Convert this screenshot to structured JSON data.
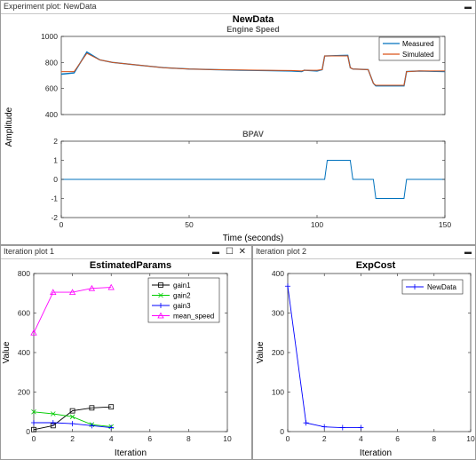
{
  "window": {
    "top_panel_title": "Experiment plot: NewData",
    "left_panel_title": "Iteration plot 1",
    "right_panel_title": "Iteration plot 2",
    "minimize_glyph": "▬",
    "maximize_glyph": "☐",
    "close_glyph": "✕"
  },
  "colors": {
    "measured": "#0072bd",
    "simulated": "#d95319",
    "gain1": "#000000",
    "gain2": "#00cc00",
    "gain3": "#0000ff",
    "mean_speed": "#ff00ff",
    "newdata": "#0000ff"
  },
  "chart_data": [
    {
      "type": "line",
      "title": "NewData",
      "subtitle": "Engine Speed",
      "ylabel": "Amplitude",
      "xlim": [
        0,
        150
      ],
      "ylim": [
        400,
        1000
      ],
      "yticks": [
        "400",
        "600",
        "800",
        "1000"
      ],
      "legend": {
        "position": "top-right",
        "entries": [
          "Measured",
          "Simulated"
        ]
      },
      "series": [
        {
          "name": "Measured",
          "x": [
            0,
            5,
            10,
            15,
            20,
            30,
            40,
            50,
            60,
            70,
            80,
            90,
            94,
            95,
            100,
            102,
            103,
            112,
            113,
            114,
            120,
            122,
            123,
            134,
            135,
            140,
            150
          ],
          "values": [
            710,
            720,
            880,
            820,
            800,
            780,
            760,
            750,
            745,
            740,
            738,
            735,
            730,
            740,
            735,
            745,
            850,
            855,
            760,
            750,
            745,
            640,
            620,
            620,
            730,
            735,
            730
          ]
        },
        {
          "name": "Simulated",
          "x": [
            0,
            5,
            10,
            15,
            20,
            30,
            40,
            50,
            60,
            70,
            80,
            90,
            94,
            95,
            100,
            102,
            103,
            112,
            113,
            114,
            120,
            122,
            123,
            134,
            135,
            140,
            150
          ],
          "values": [
            730,
            730,
            870,
            820,
            800,
            780,
            760,
            750,
            745,
            742,
            740,
            738,
            735,
            740,
            740,
            745,
            850,
            850,
            760,
            750,
            745,
            640,
            625,
            625,
            730,
            735,
            735
          ]
        }
      ]
    },
    {
      "type": "line",
      "title": "BPAV",
      "xlabel": "Time (seconds)",
      "xlim": [
        0,
        150
      ],
      "ylim": [
        -2,
        2
      ],
      "xticks": [
        "0",
        "50",
        "100",
        "150"
      ],
      "yticks": [
        "-2",
        "-1",
        "0",
        "1",
        "2"
      ],
      "series": [
        {
          "name": "",
          "x": [
            0,
            5,
            94,
            94.5,
            103,
            104,
            113,
            114,
            122,
            123,
            134,
            135,
            150
          ],
          "values": [
            0,
            0,
            0,
            0,
            0,
            1,
            1,
            0,
            0,
            -1,
            -1,
            0,
            0
          ]
        }
      ]
    },
    {
      "type": "line",
      "title": "EstimatedParams",
      "xlabel": "Iteration",
      "ylabel": "Value",
      "xlim": [
        0,
        10
      ],
      "ylim": [
        0,
        800
      ],
      "xticks": [
        "0",
        "2",
        "4",
        "6",
        "8",
        "10"
      ],
      "yticks": [
        "0",
        "200",
        "400",
        "600",
        "800"
      ],
      "legend": {
        "position": "top-right",
        "entries": [
          "gain1",
          "gain2",
          "gain3",
          "mean_speed"
        ]
      },
      "series": [
        {
          "name": "gain1",
          "x": [
            0,
            1,
            2,
            3,
            4
          ],
          "values": [
            10,
            30,
            105,
            120,
            125
          ]
        },
        {
          "name": "gain2",
          "x": [
            0,
            1,
            2,
            3,
            4
          ],
          "values": [
            100,
            90,
            75,
            35,
            25
          ]
        },
        {
          "name": "gain3",
          "x": [
            0,
            1,
            2,
            3,
            4
          ],
          "values": [
            45,
            45,
            40,
            30,
            20
          ]
        },
        {
          "name": "mean_speed",
          "x": [
            0,
            1,
            2,
            3,
            4
          ],
          "values": [
            500,
            705,
            705,
            725,
            730
          ]
        }
      ]
    },
    {
      "type": "line",
      "title": "ExpCost",
      "xlabel": "Iteration",
      "ylabel": "Value",
      "xlim": [
        0,
        10
      ],
      "ylim": [
        0,
        400
      ],
      "xticks": [
        "0",
        "2",
        "4",
        "6",
        "8",
        "10"
      ],
      "yticks": [
        "0",
        "100",
        "200",
        "300",
        "400"
      ],
      "legend": {
        "position": "top-right",
        "entries": [
          "NewData"
        ]
      },
      "series": [
        {
          "name": "NewData",
          "x": [
            0,
            1,
            2,
            3,
            4
          ],
          "values": [
            368,
            22,
            12,
            10,
            10
          ]
        }
      ]
    }
  ]
}
